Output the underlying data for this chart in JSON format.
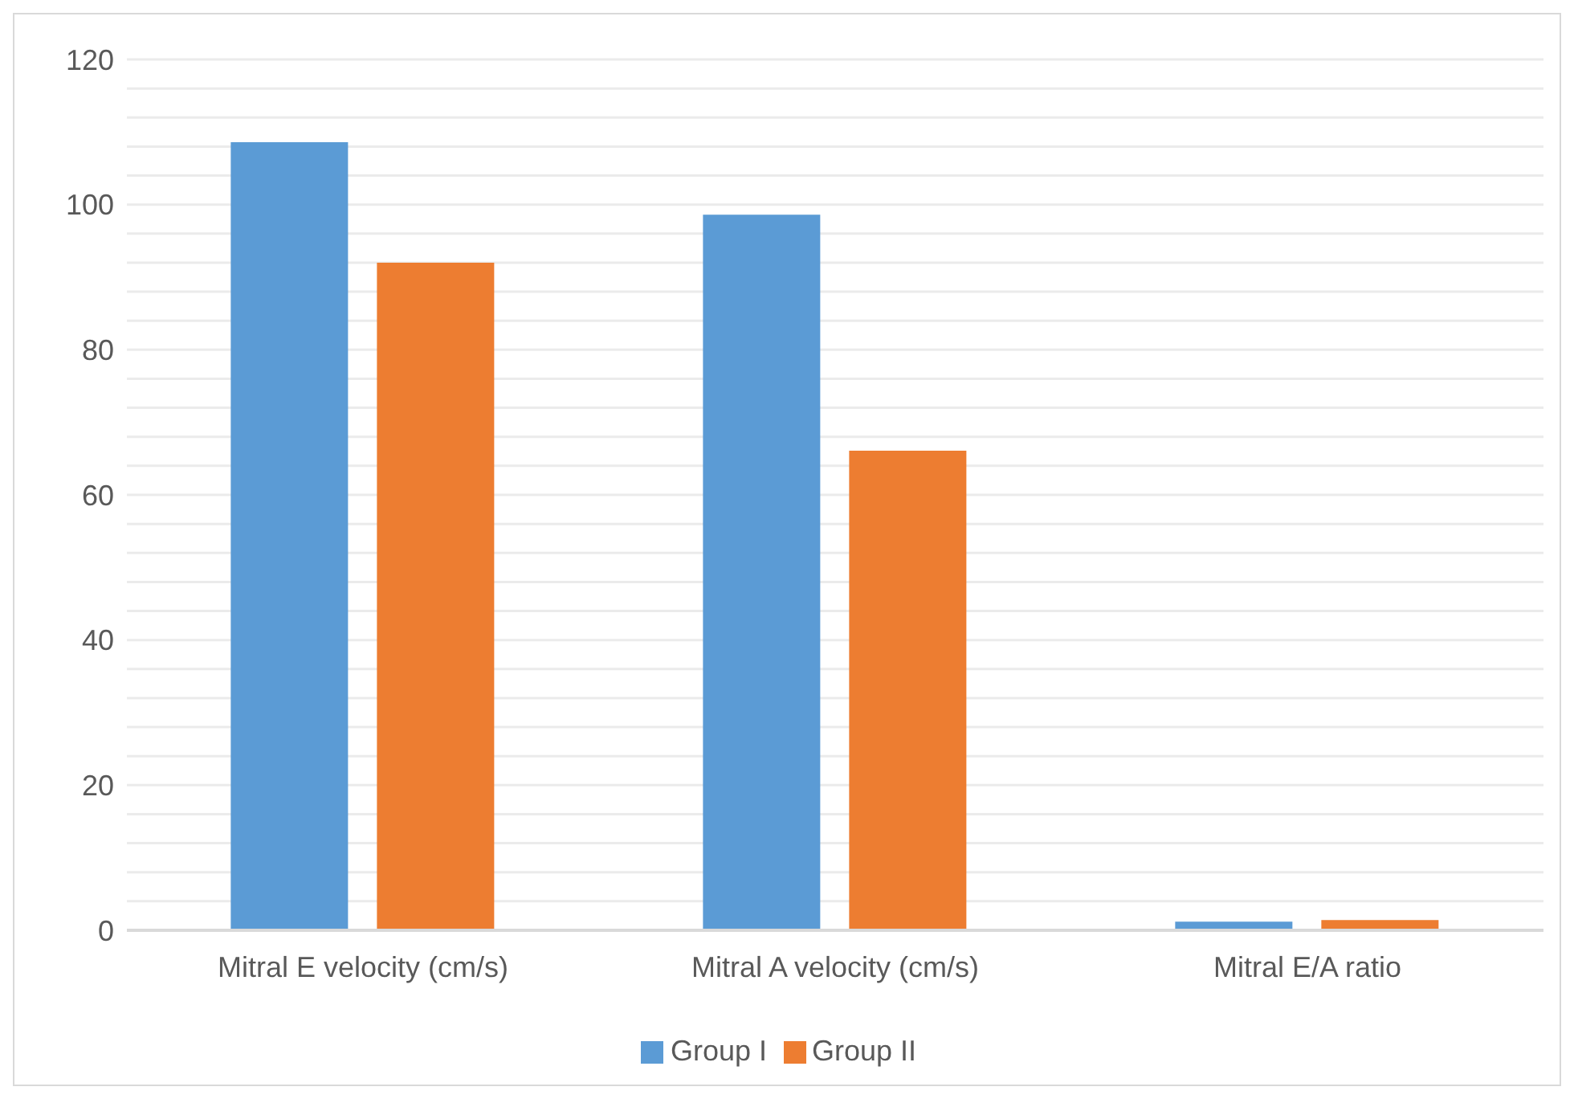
{
  "chart_data": {
    "type": "bar",
    "categories": [
      "Mitral E velocity (cm/s)",
      "Mitral A velocity (cm/s)",
      "Mitral E/A ratio"
    ],
    "series": [
      {
        "name": "Group I",
        "color": "#5b9bd5",
        "values": [
          108.6,
          98.6,
          1.2
        ]
      },
      {
        "name": "Group II",
        "color": "#ed7d31",
        "values": [
          92.0,
          66.1,
          1.4
        ]
      }
    ],
    "ylim": [
      0,
      120
    ],
    "yticks": [
      0,
      {
        "value": 4,
        "label": null
      },
      {
        "value": 8,
        "label": null
      },
      {
        "value": 12,
        "label": null
      },
      {
        "value": 16,
        "label": null
      },
      20,
      {
        "value": 24,
        "label": null
      },
      {
        "value": 28,
        "label": null
      },
      {
        "value": 32,
        "label": null
      },
      {
        "value": 36,
        "label": null
      },
      40,
      {
        "value": 44,
        "label": null
      },
      {
        "value": 48,
        "label": null
      },
      {
        "value": 52,
        "label": null
      },
      {
        "value": 56,
        "label": null
      },
      60,
      {
        "value": 64,
        "label": null
      },
      {
        "value": 68,
        "label": null
      },
      {
        "value": 72,
        "label": null
      },
      {
        "value": 76,
        "label": null
      },
      80,
      {
        "value": 84,
        "label": null
      },
      {
        "value": 88,
        "label": null
      },
      {
        "value": 92,
        "label": null
      },
      {
        "value": 96,
        "label": null
      },
      100,
      {
        "value": 104,
        "label": null
      },
      {
        "value": 108,
        "label": null
      },
      {
        "value": 112,
        "label": null
      },
      {
        "value": 116,
        "label": null
      },
      120
    ],
    "grid": "y",
    "legend": "bottom"
  }
}
